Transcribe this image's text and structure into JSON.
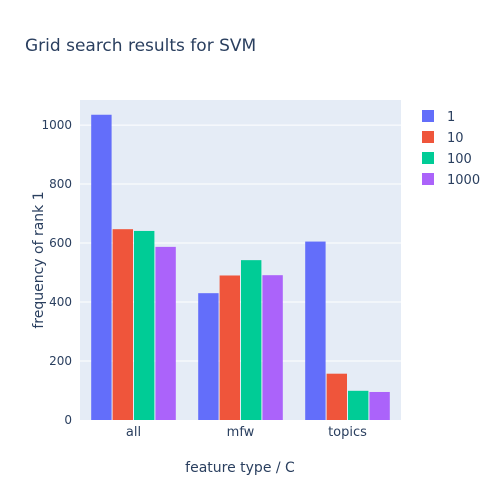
{
  "chart_data": {
    "type": "bar",
    "title": "Grid search results for SVM",
    "xlabel": "feature type / C",
    "ylabel": "frequency of rank 1",
    "categories": [
      "all",
      "mfw",
      "topics"
    ],
    "ylim": [
      0,
      1085
    ],
    "yticks": [
      0,
      200,
      400,
      600,
      800,
      1000
    ],
    "grid": true,
    "legend_position": "top-right",
    "plot_background": "#e5ecf6",
    "series": [
      {
        "name": "1",
        "color": "#636efa",
        "values": [
          1035,
          430,
          605
        ]
      },
      {
        "name": "10",
        "color": "#ef553b",
        "values": [
          647,
          490,
          157
        ]
      },
      {
        "name": "100",
        "color": "#00cc96",
        "values": [
          641,
          542,
          99
        ]
      },
      {
        "name": "1000",
        "color": "#ab63fa",
        "values": [
          587,
          491,
          95
        ]
      }
    ]
  }
}
